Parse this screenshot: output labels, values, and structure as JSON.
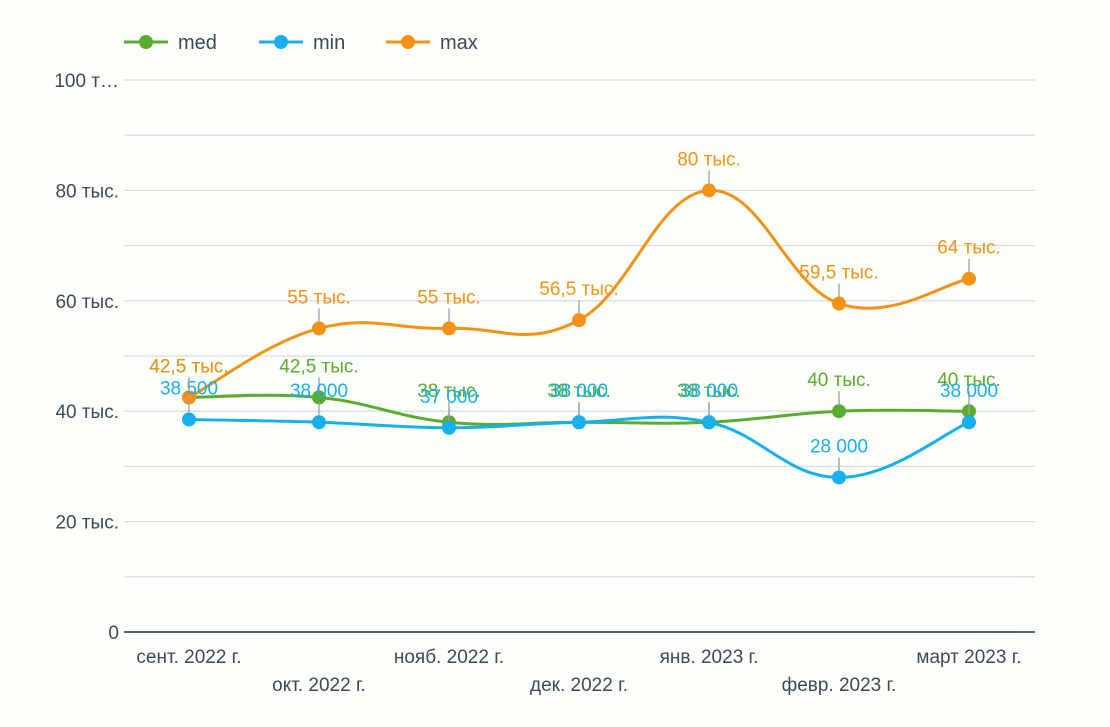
{
  "chart_data": {
    "type": "line",
    "categories": [
      "сент. 2022 г.",
      "окт. 2022 г.",
      "нояб. 2022 г.",
      "дек. 2022 г.",
      "янв. 2023 г.",
      "февр. 2023 г.",
      "март 2023 г."
    ],
    "ylim": [
      0,
      100000
    ],
    "y_ticks": [
      {
        "value": 0,
        "label": "0"
      },
      {
        "value": 20000,
        "label": "20 тыс."
      },
      {
        "value": 40000,
        "label": "40 тыс."
      },
      {
        "value": 60000,
        "label": "60 тыс."
      },
      {
        "value": 80000,
        "label": "80 тыс."
      },
      {
        "value": 100000,
        "label": "100 т…"
      }
    ],
    "minor_grid_step": 10000,
    "legend_position": "top-left",
    "series": [
      {
        "name": "med",
        "color": "#5aab2f",
        "values": [
          42500,
          42500,
          38000,
          38000,
          38000,
          40000,
          40000
        ],
        "labels": [
          "42,5 тыс.",
          "42,5 тыс.",
          "38 тыс.",
          "38 тыс.",
          "38 тыс.",
          "40 тыс.",
          "40 тыс."
        ]
      },
      {
        "name": "min",
        "color": "#16b1ec",
        "values": [
          38500,
          38000,
          37000,
          38000,
          38000,
          28000,
          38000
        ],
        "labels": [
          "38 500",
          "38 000",
          "37 000",
          "38 000",
          "38 000",
          "28 000",
          "38 000"
        ]
      },
      {
        "name": "max",
        "color": "#f39216",
        "values": [
          42500,
          55000,
          55000,
          56500,
          80000,
          59500,
          64000
        ],
        "labels": [
          "42,5 тыс.",
          "55 тыс.",
          "55 тыс.",
          "56,5 тыс.",
          "80 тыс.",
          "59,5 тыс.",
          "64 тыс."
        ]
      }
    ]
  }
}
